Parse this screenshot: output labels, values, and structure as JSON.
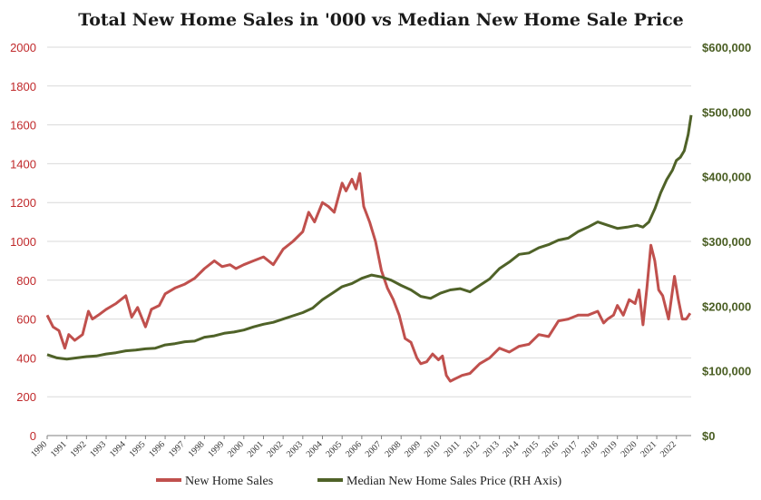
{
  "chart_data": {
    "type": "line",
    "title": "Total New Home Sales in '000 vs Median New Home Sale Price",
    "x_ticks": [
      "1990",
      "1991",
      "1992",
      "1993",
      "1994",
      "1995",
      "1996",
      "1997",
      "1998",
      "1999",
      "2000",
      "2001",
      "2002",
      "2003",
      "2004",
      "2005",
      "2006",
      "2007",
      "2008",
      "2009",
      "2010",
      "2011",
      "2012",
      "2013",
      "2014",
      "2015",
      "2016",
      "2017",
      "2018",
      "2019",
      "2020",
      "2021",
      "2022"
    ],
    "y_left": {
      "ticks": [
        "0",
        "200",
        "400",
        "600",
        "800",
        "1000",
        "1200",
        "1400",
        "1600",
        "1800",
        "2000"
      ],
      "range": [
        0,
        2000
      ]
    },
    "y_right": {
      "ticks": [
        "$0",
        "$100,000",
        "$200,000",
        "$300,000",
        "$400,000",
        "$500,000",
        "$600,000"
      ],
      "range": [
        0,
        600000
      ]
    },
    "grid": "horizontal",
    "legend_position": "bottom",
    "series": [
      {
        "name": "New Home Sales",
        "color": "#c0504d",
        "axis": "left",
        "x": [
          1990.0,
          1990.3,
          1990.6,
          1990.9,
          1991.1,
          1991.4,
          1991.8,
          1992.1,
          1992.3,
          1992.6,
          1993.0,
          1993.5,
          1994.0,
          1994.3,
          1994.6,
          1995.0,
          1995.3,
          1995.7,
          1996.0,
          1996.5,
          1997.0,
          1997.5,
          1998.0,
          1998.5,
          1998.9,
          1999.3,
          1999.6,
          2000.0,
          2000.5,
          2001.0,
          2001.5,
          2002.0,
          2002.5,
          2003.0,
          2003.3,
          2003.6,
          2004.0,
          2004.3,
          2004.6,
          2005.0,
          2005.2,
          2005.5,
          2005.7,
          2005.9,
          2006.1,
          2006.4,
          2006.7,
          2007.0,
          2007.3,
          2007.6,
          2007.9,
          2008.2,
          2008.5,
          2008.8,
          2009.0,
          2009.3,
          2009.6,
          2009.9,
          2010.1,
          2010.3,
          2010.5,
          2010.7,
          2010.9,
          2011.1,
          2011.5,
          2012.0,
          2012.5,
          2013.0,
          2013.5,
          2014.0,
          2014.5,
          2015.0,
          2015.5,
          2016.0,
          2016.5,
          2017.0,
          2017.5,
          2018.0,
          2018.3,
          2018.5,
          2018.8,
          2019.0,
          2019.3,
          2019.6,
          2019.9,
          2020.1,
          2020.3,
          2020.5,
          2020.7,
          2020.9,
          2021.1,
          2021.3,
          2021.6,
          2021.9,
          2022.1,
          2022.3,
          2022.5,
          2022.7
        ],
        "y": [
          620,
          560,
          540,
          450,
          520,
          490,
          520,
          640,
          600,
          620,
          650,
          680,
          720,
          610,
          660,
          560,
          650,
          670,
          730,
          760,
          780,
          810,
          860,
          900,
          870,
          880,
          860,
          880,
          900,
          920,
          880,
          960,
          1000,
          1050,
          1150,
          1100,
          1200,
          1180,
          1150,
          1300,
          1260,
          1320,
          1270,
          1350,
          1180,
          1100,
          1000,
          850,
          760,
          700,
          620,
          500,
          480,
          400,
          370,
          380,
          420,
          390,
          410,
          310,
          280,
          290,
          300,
          310,
          320,
          370,
          400,
          450,
          430,
          460,
          470,
          520,
          510,
          590,
          600,
          620,
          620,
          640,
          580,
          600,
          620,
          670,
          620,
          700,
          680,
          750,
          570,
          760,
          980,
          900,
          750,
          720,
          600,
          820,
          700,
          600,
          600,
          630
        ]
      },
      {
        "name": "Median New Home Sales Price (RH Axis)",
        "color": "#4f6228",
        "axis": "right",
        "x": [
          1990.0,
          1990.5,
          1991.0,
          1991.5,
          1992.0,
          1992.5,
          1993.0,
          1993.5,
          1994.0,
          1994.5,
          1995.0,
          1995.5,
          1996.0,
          1996.5,
          1997.0,
          1997.5,
          1998.0,
          1998.5,
          1999.0,
          1999.5,
          2000.0,
          2000.5,
          2001.0,
          2001.5,
          2002.0,
          2002.5,
          2003.0,
          2003.5,
          2004.0,
          2004.5,
          2005.0,
          2005.5,
          2006.0,
          2006.5,
          2007.0,
          2007.5,
          2008.0,
          2008.5,
          2009.0,
          2009.5,
          2010.0,
          2010.5,
          2011.0,
          2011.5,
          2012.0,
          2012.5,
          2013.0,
          2013.5,
          2014.0,
          2014.5,
          2015.0,
          2015.5,
          2016.0,
          2016.5,
          2017.0,
          2017.5,
          2018.0,
          2018.5,
          2019.0,
          2019.5,
          2020.0,
          2020.3,
          2020.6,
          2020.9,
          2021.2,
          2021.5,
          2021.8,
          2022.0,
          2022.2,
          2022.4,
          2022.6,
          2022.75
        ],
        "y": [
          125000,
          120000,
          118000,
          120000,
          122000,
          123000,
          126000,
          128000,
          131000,
          132000,
          134000,
          135000,
          140000,
          142000,
          145000,
          146000,
          152000,
          154000,
          158000,
          160000,
          163000,
          168000,
          172000,
          175000,
          180000,
          185000,
          190000,
          197000,
          210000,
          220000,
          230000,
          235000,
          243000,
          248000,
          245000,
          240000,
          232000,
          225000,
          215000,
          212000,
          220000,
          225000,
          227000,
          222000,
          232000,
          242000,
          258000,
          268000,
          280000,
          282000,
          290000,
          295000,
          302000,
          305000,
          315000,
          322000,
          330000,
          325000,
          320000,
          322000,
          325000,
          322000,
          330000,
          350000,
          375000,
          395000,
          410000,
          425000,
          430000,
          440000,
          465000,
          495000
        ]
      }
    ]
  }
}
